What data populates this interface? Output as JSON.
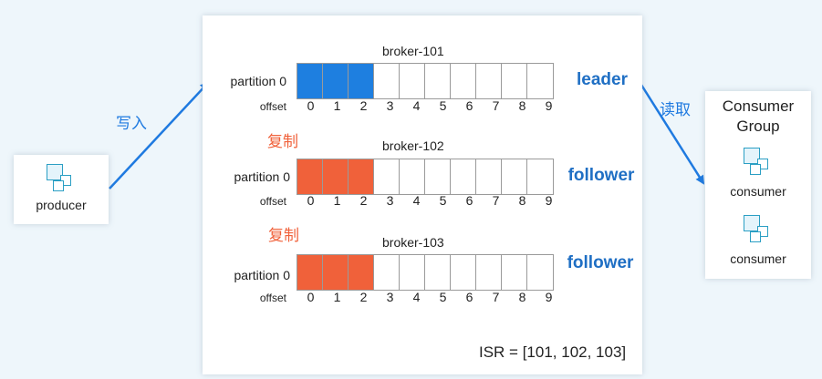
{
  "producer": {
    "label": "producer",
    "icon": "node-icon"
  },
  "write_label": "写入",
  "read_label": "读取",
  "replicate_label": "复制",
  "brokers": [
    {
      "name": "broker-101",
      "partition": "partition 0",
      "offset_label": "offset",
      "role": "leader",
      "filled": 3,
      "fill_color": "#1e7fe0"
    },
    {
      "name": "broker-102",
      "partition": "partition 0",
      "offset_label": "offset",
      "role": "follower",
      "filled": 3,
      "fill_color": "#f0613a"
    },
    {
      "name": "broker-103",
      "partition": "partition 0",
      "offset_label": "offset",
      "role": "follower",
      "filled": 3,
      "fill_color": "#f0613a"
    }
  ],
  "offsets": [
    "0",
    "1",
    "2",
    "3",
    "4",
    "5",
    "6",
    "7",
    "8",
    "9"
  ],
  "isr": "ISR = [101, 102, 103]",
  "consumer_group": {
    "title": "Consumer Group",
    "consumers": [
      "consumer",
      "consumer"
    ]
  },
  "colors": {
    "arrow_blue": "#1f7ae0",
    "arrow_orange": "#f0613a",
    "role_text": "#1f6fc4"
  }
}
